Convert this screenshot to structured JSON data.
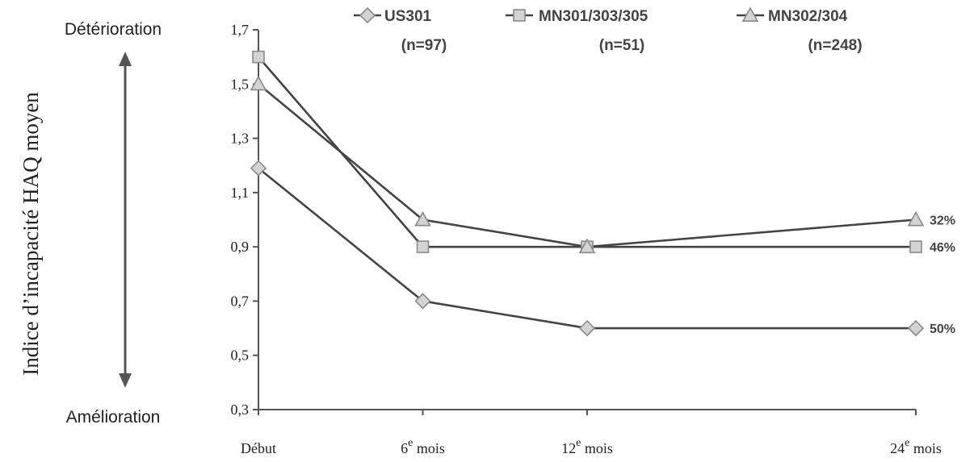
{
  "chart_data": {
    "type": "line",
    "ylabel": "Indice d’incapacité HAQ moyen",
    "xlabel": "",
    "ylim": [
      0.3,
      1.7
    ],
    "yticks": [
      {
        "value": 0.3,
        "label": "0,3"
      },
      {
        "value": 0.5,
        "label": "0,5"
      },
      {
        "value": 0.7,
        "label": "0,7"
      },
      {
        "value": 0.9,
        "label": "0,9"
      },
      {
        "value": 1.1,
        "label": "1,1"
      },
      {
        "value": 1.3,
        "label": "1,3"
      },
      {
        "value": 1.5,
        "label": "1,5"
      },
      {
        "value": 1.7,
        "label": "1,7"
      }
    ],
    "x": [
      0,
      6,
      12,
      24
    ],
    "xticks": [
      {
        "value": 0,
        "main": "Début",
        "sup": ""
      },
      {
        "value": 6,
        "main": "6",
        "sup": "e",
        "rest": " mois"
      },
      {
        "value": 12,
        "main": "12",
        "sup": "e",
        "rest": " mois"
      },
      {
        "value": 24,
        "main": "24",
        "sup": "e",
        "rest": " mois"
      }
    ],
    "series": [
      {
        "name": "US301",
        "n_label": "(n=97)",
        "marker": "diamond",
        "values": [
          1.19,
          0.7,
          0.6,
          0.6
        ],
        "end_label": "50%"
      },
      {
        "name": "MN301/303/305",
        "n_label": "(n=51)",
        "marker": "square",
        "values": [
          1.6,
          0.9,
          0.9,
          0.9
        ],
        "end_label": "46%"
      },
      {
        "name": "MN302/304",
        "n_label": "(n=248)",
        "marker": "triangle",
        "values": [
          1.5,
          1.0,
          0.9,
          1.0
        ],
        "end_label": "32%"
      }
    ],
    "annotations": {
      "top": "Détérioration",
      "bottom": "Amélioration"
    },
    "colors": {
      "line": "#444444",
      "marker_fill": "#d3d3d3",
      "marker_stroke": "#8a8a8a",
      "axis": "#555555"
    },
    "grid": false,
    "legend_position": "top"
  }
}
